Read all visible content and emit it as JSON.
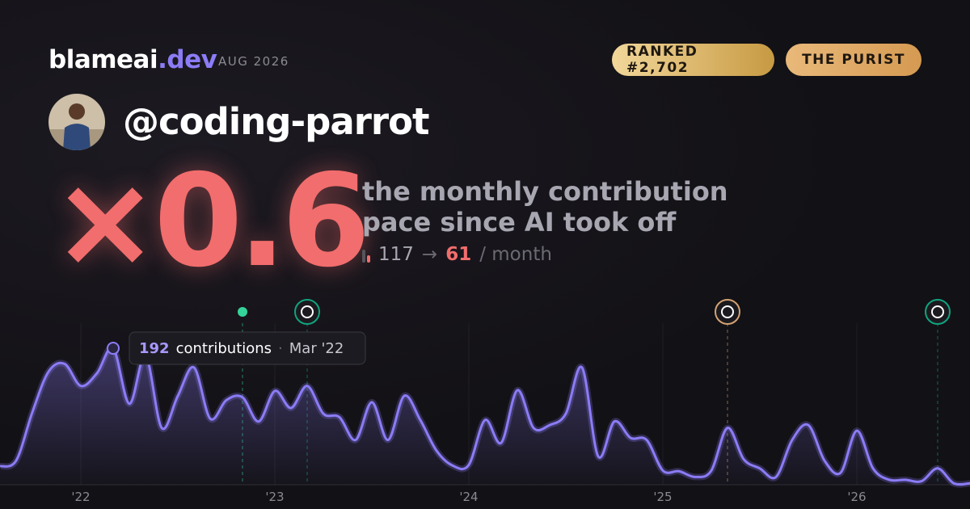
{
  "header": {
    "brand": "blameai",
    "brand_tld": ".dev",
    "period": "AUG 2026",
    "badges": [
      "RANKED #2,702",
      "THE PURIST"
    ]
  },
  "profile": {
    "username": "@coding-parrot"
  },
  "metric": {
    "value": "×0.6",
    "description": [
      "the monthly contribution",
      "pace since AI took off"
    ],
    "before": 117,
    "arrow": "→",
    "after": 61,
    "unit": "/ month"
  },
  "chart_data": {
    "type": "line",
    "x": [
      "2021-08",
      "2021-09",
      "2021-10",
      "2021-11",
      "2021-12",
      "2022-01",
      "2022-02",
      "2022-03",
      "2022-04",
      "2022-05",
      "2022-06",
      "2022-07",
      "2022-08",
      "2022-09",
      "2022-10",
      "2022-11",
      "2022-12",
      "2023-01",
      "2023-02",
      "2023-03",
      "2023-04",
      "2023-05",
      "2023-06",
      "2023-07",
      "2023-08",
      "2023-09",
      "2023-10",
      "2023-11",
      "2023-12",
      "2024-01",
      "2024-02",
      "2024-03",
      "2024-04",
      "2024-05",
      "2024-06",
      "2024-07",
      "2024-08",
      "2024-09",
      "2024-10",
      "2024-11",
      "2024-12",
      "2025-01",
      "2025-02",
      "2025-03",
      "2025-04",
      "2025-05",
      "2025-06",
      "2025-07",
      "2025-08",
      "2025-09",
      "2025-10",
      "2025-11",
      "2025-12",
      "2026-01",
      "2026-02",
      "2026-03",
      "2026-04",
      "2026-05",
      "2026-06",
      "2026-07",
      "2026-08"
    ],
    "series": [
      {
        "name": "contributions",
        "color": "#8b7cf6",
        "values": [
          26,
          34,
          102,
          159,
          170,
          139,
          157,
          192,
          114,
          182,
          80,
          125,
          165,
          93,
          119,
          123,
          89,
          132,
          108,
          139,
          100,
          95,
          63,
          116,
          63,
          125,
          91,
          48,
          27,
          28,
          91,
          59,
          133,
          80,
          84,
          100,
          165,
          40,
          89,
          66,
          63,
          20,
          19,
          11,
          20,
          80,
          36,
          23,
          11,
          63,
          84,
          34,
          17,
          76,
          23,
          7,
          7,
          5,
          23,
          2,
          2
        ]
      }
    ],
    "xlim": [
      "2021-08",
      "2026-08"
    ],
    "xticks": [
      {
        "value": "2022-01",
        "label": "'22"
      },
      {
        "value": "2023-01",
        "label": "'23"
      },
      {
        "value": "2024-01",
        "label": "'24"
      },
      {
        "value": "2025-01",
        "label": "'25"
      },
      {
        "value": "2026-01",
        "label": "'26"
      }
    ],
    "ylim": [
      0,
      200
    ],
    "markers": [
      {
        "x": "2022-11",
        "color": "#34d399"
      },
      {
        "x": "2023-03",
        "color": "#10a37f"
      },
      {
        "x": "2025-05",
        "color": "#d4a373"
      },
      {
        "x": "2026-06",
        "color": "#10a37f"
      }
    ],
    "tooltip": {
      "index": 7,
      "date_label": "Mar '22"
    }
  }
}
